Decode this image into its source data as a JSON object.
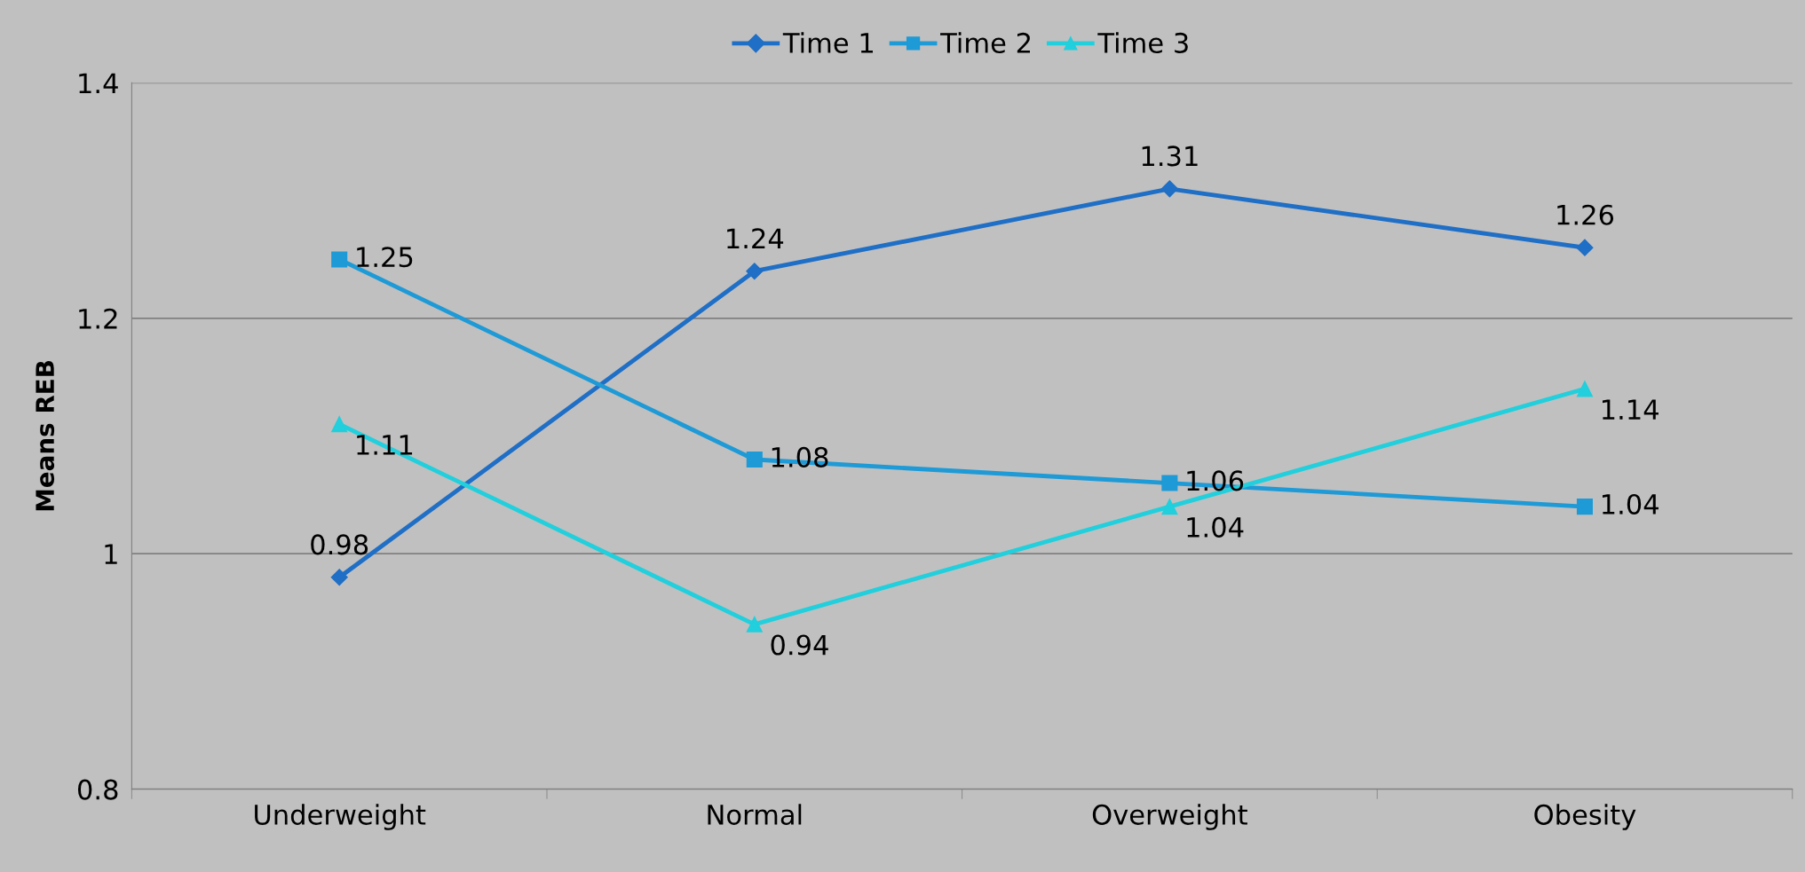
{
  "chart_data": {
    "type": "line",
    "ylabel": "Means REB",
    "categories": [
      "Underweight",
      "Normal",
      "Overweight",
      "Obesity"
    ],
    "series": [
      {
        "name": "Time 1",
        "color": "#1f6fc6",
        "marker": "diamond",
        "values": [
          0.98,
          1.24,
          1.31,
          1.26
        ]
      },
      {
        "name": "Time 2",
        "color": "#1e9ad6",
        "marker": "square",
        "values": [
          1.25,
          1.08,
          1.06,
          1.04
        ]
      },
      {
        "name": "Time 3",
        "color": "#22cfdc",
        "marker": "triangle",
        "values": [
          1.11,
          0.94,
          1.04,
          1.14
        ]
      }
    ],
    "ylim": [
      0.8,
      1.4
    ],
    "yticks": [
      0.8,
      1,
      1.2,
      1.4
    ],
    "grid": "y",
    "legend": "top",
    "data_labels": true,
    "line_style": "solid"
  }
}
